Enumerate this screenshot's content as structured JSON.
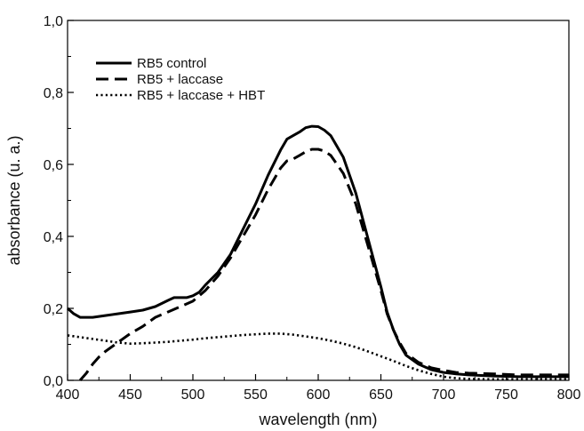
{
  "chart_data": {
    "type": "line",
    "xlabel": "wavelength (nm)",
    "ylabel": "absorbance (u. a.)",
    "xlim": [
      400,
      800
    ],
    "ylim": [
      0,
      1.0
    ],
    "x_ticks": [
      400,
      450,
      500,
      550,
      600,
      650,
      700,
      750,
      800
    ],
    "x_tick_labels": [
      "400",
      "450",
      "500",
      "550",
      "600",
      "650",
      "700",
      "750",
      "800"
    ],
    "y_ticks": [
      0,
      0.2,
      0.4,
      0.6,
      0.8,
      1.0
    ],
    "y_tick_labels": [
      "0,0",
      "0,2",
      "0,4",
      "0,6",
      "0,8",
      "1,0"
    ],
    "grid": false,
    "legend_position": "top-left",
    "series": [
      {
        "name": "RB5 control",
        "style": "solid",
        "color": "#000000",
        "points": [
          [
            400,
            0.2
          ],
          [
            405,
            0.185
          ],
          [
            410,
            0.175
          ],
          [
            420,
            0.175
          ],
          [
            430,
            0.18
          ],
          [
            440,
            0.185
          ],
          [
            450,
            0.19
          ],
          [
            460,
            0.195
          ],
          [
            470,
            0.205
          ],
          [
            480,
            0.222
          ],
          [
            485,
            0.23
          ],
          [
            490,
            0.23
          ],
          [
            495,
            0.23
          ],
          [
            500,
            0.235
          ],
          [
            505,
            0.245
          ],
          [
            510,
            0.265
          ],
          [
            520,
            0.3
          ],
          [
            530,
            0.35
          ],
          [
            540,
            0.42
          ],
          [
            550,
            0.49
          ],
          [
            560,
            0.57
          ],
          [
            570,
            0.64
          ],
          [
            575,
            0.67
          ],
          [
            580,
            0.68
          ],
          [
            585,
            0.69
          ],
          [
            590,
            0.702
          ],
          [
            595,
            0.706
          ],
          [
            600,
            0.705
          ],
          [
            605,
            0.695
          ],
          [
            610,
            0.68
          ],
          [
            620,
            0.62
          ],
          [
            630,
            0.52
          ],
          [
            640,
            0.39
          ],
          [
            650,
            0.26
          ],
          [
            655,
            0.19
          ],
          [
            660,
            0.14
          ],
          [
            665,
            0.1
          ],
          [
            670,
            0.07
          ],
          [
            680,
            0.045
          ],
          [
            690,
            0.03
          ],
          [
            700,
            0.022
          ],
          [
            710,
            0.018
          ],
          [
            720,
            0.015
          ],
          [
            740,
            0.012
          ],
          [
            760,
            0.01
          ],
          [
            780,
            0.01
          ],
          [
            800,
            0.01
          ]
        ]
      },
      {
        "name": "RB5 + laccase",
        "style": "dashed",
        "color": "#000000",
        "points": [
          [
            410,
            0.0
          ],
          [
            415,
            0.02
          ],
          [
            420,
            0.045
          ],
          [
            425,
            0.065
          ],
          [
            430,
            0.08
          ],
          [
            440,
            0.105
          ],
          [
            450,
            0.13
          ],
          [
            460,
            0.15
          ],
          [
            470,
            0.175
          ],
          [
            480,
            0.19
          ],
          [
            490,
            0.205
          ],
          [
            500,
            0.22
          ],
          [
            510,
            0.25
          ],
          [
            520,
            0.29
          ],
          [
            530,
            0.34
          ],
          [
            540,
            0.4
          ],
          [
            550,
            0.46
          ],
          [
            560,
            0.53
          ],
          [
            570,
            0.59
          ],
          [
            575,
            0.61
          ],
          [
            580,
            0.615
          ],
          [
            585,
            0.625
          ],
          [
            590,
            0.635
          ],
          [
            595,
            0.642
          ],
          [
            600,
            0.642
          ],
          [
            605,
            0.637
          ],
          [
            610,
            0.625
          ],
          [
            620,
            0.575
          ],
          [
            630,
            0.49
          ],
          [
            640,
            0.37
          ],
          [
            650,
            0.25
          ],
          [
            655,
            0.185
          ],
          [
            660,
            0.14
          ],
          [
            665,
            0.105
          ],
          [
            670,
            0.075
          ],
          [
            680,
            0.05
          ],
          [
            690,
            0.035
          ],
          [
            700,
            0.028
          ],
          [
            710,
            0.022
          ],
          [
            720,
            0.02
          ],
          [
            740,
            0.018
          ],
          [
            760,
            0.015
          ],
          [
            780,
            0.015
          ],
          [
            800,
            0.015
          ]
        ]
      },
      {
        "name": "RB5 + laccase + HBT",
        "style": "dotted",
        "color": "#000000",
        "points": [
          [
            400,
            0.125
          ],
          [
            410,
            0.12
          ],
          [
            420,
            0.115
          ],
          [
            430,
            0.11
          ],
          [
            440,
            0.105
          ],
          [
            450,
            0.102
          ],
          [
            460,
            0.103
          ],
          [
            470,
            0.105
          ],
          [
            480,
            0.107
          ],
          [
            490,
            0.11
          ],
          [
            500,
            0.113
          ],
          [
            510,
            0.117
          ],
          [
            520,
            0.12
          ],
          [
            530,
            0.123
          ],
          [
            540,
            0.126
          ],
          [
            550,
            0.128
          ],
          [
            560,
            0.13
          ],
          [
            570,
            0.13
          ],
          [
            580,
            0.127
          ],
          [
            590,
            0.122
          ],
          [
            600,
            0.117
          ],
          [
            610,
            0.11
          ],
          [
            620,
            0.102
          ],
          [
            630,
            0.092
          ],
          [
            640,
            0.08
          ],
          [
            650,
            0.067
          ],
          [
            660,
            0.054
          ],
          [
            670,
            0.04
          ],
          [
            680,
            0.028
          ],
          [
            690,
            0.018
          ],
          [
            700,
            0.01
          ],
          [
            710,
            0.006
          ],
          [
            720,
            0.004
          ],
          [
            740,
            0.003
          ],
          [
            760,
            0.003
          ],
          [
            780,
            0.003
          ],
          [
            800,
            0.003
          ]
        ]
      }
    ]
  }
}
